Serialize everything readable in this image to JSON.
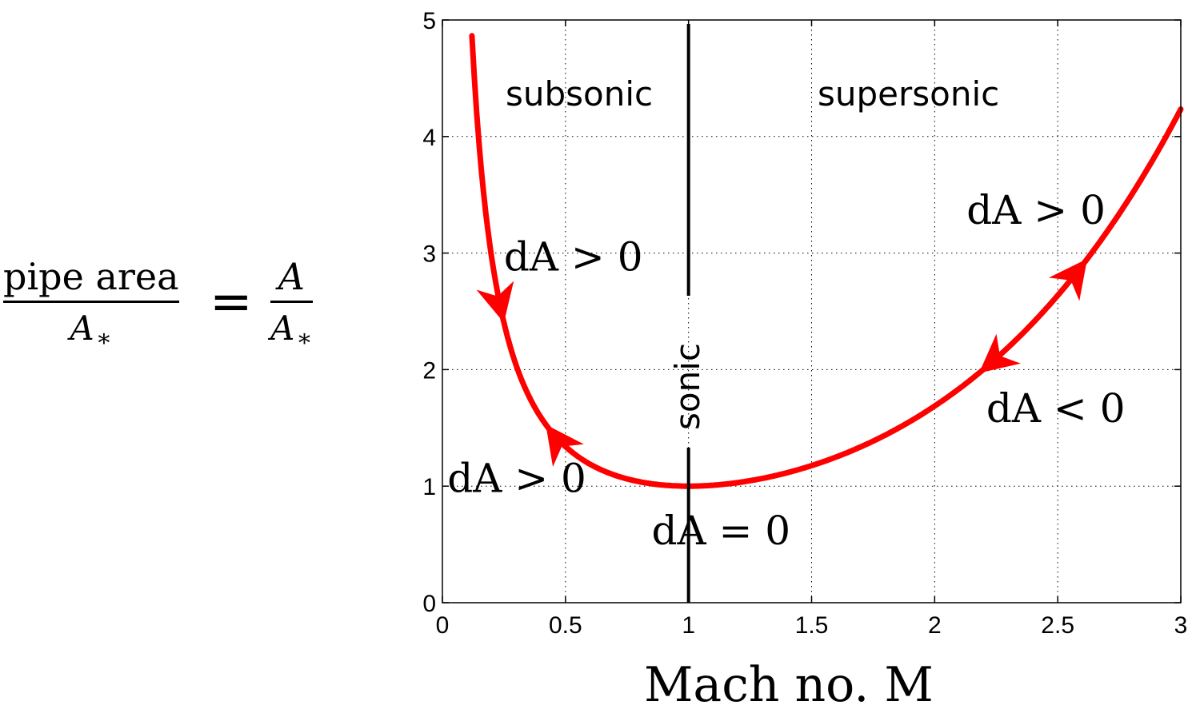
{
  "y_axis_label": {
    "numerator": "pipe area",
    "denominator_symbol": "A",
    "denominator_subscript": "∗",
    "equals": "=",
    "rhs_numerator": "A",
    "rhs_denominator_symbol": "A",
    "rhs_denominator_subscript": "∗"
  },
  "chart_data": {
    "type": "line",
    "title": "",
    "xlabel": "Mach no. M",
    "ylabel": "pipe area / A∗ = A / A∗",
    "xlim": [
      0,
      3
    ],
    "ylim": [
      0,
      5
    ],
    "x_ticks": [
      "0",
      "0.5",
      "1",
      "1.5",
      "2",
      "2.5",
      "3"
    ],
    "y_ticks": [
      "0",
      "1",
      "2",
      "3",
      "4",
      "5"
    ],
    "grid": true,
    "line_color": "#ff0000",
    "series": [
      {
        "x": [
          0.12,
          0.15,
          0.2,
          0.25,
          0.3,
          0.35,
          0.4,
          0.5,
          0.6,
          0.7,
          0.8,
          0.9,
          1.0,
          1.1,
          1.2,
          1.4,
          1.6,
          1.8,
          2.0,
          2.2,
          2.4,
          2.6,
          2.8,
          3.0
        ],
        "values": [
          4.85,
          3.91,
          2.96,
          2.4,
          2.04,
          1.79,
          1.59,
          1.34,
          1.19,
          1.09,
          1.04,
          1.01,
          1.0,
          1.01,
          1.03,
          1.11,
          1.25,
          1.44,
          1.69,
          2.01,
          2.4,
          2.9,
          3.5,
          4.23
        ]
      }
    ],
    "sonic_line_x": 1,
    "regions": {
      "subsonic": "subsonic",
      "supersonic": "supersonic",
      "sonic": "sonic"
    },
    "annotations": [
      {
        "text": "dA > 0",
        "x": 0.25,
        "y": 2.85
      },
      {
        "text": "dA > 0",
        "x": 0.02,
        "y": 0.95
      },
      {
        "text": "dA = 0",
        "x": 0.85,
        "y": 0.5
      },
      {
        "text": "dA > 0",
        "x": 2.13,
        "y": 3.25
      },
      {
        "text": "dA < 0",
        "x": 2.21,
        "y": 1.55
      }
    ],
    "arrows": [
      {
        "x": 0.25,
        "direction": "down"
      },
      {
        "x": 0.42,
        "direction": "up"
      },
      {
        "x": 2.62,
        "direction": "up"
      },
      {
        "x": 2.18,
        "direction": "down"
      }
    ]
  }
}
